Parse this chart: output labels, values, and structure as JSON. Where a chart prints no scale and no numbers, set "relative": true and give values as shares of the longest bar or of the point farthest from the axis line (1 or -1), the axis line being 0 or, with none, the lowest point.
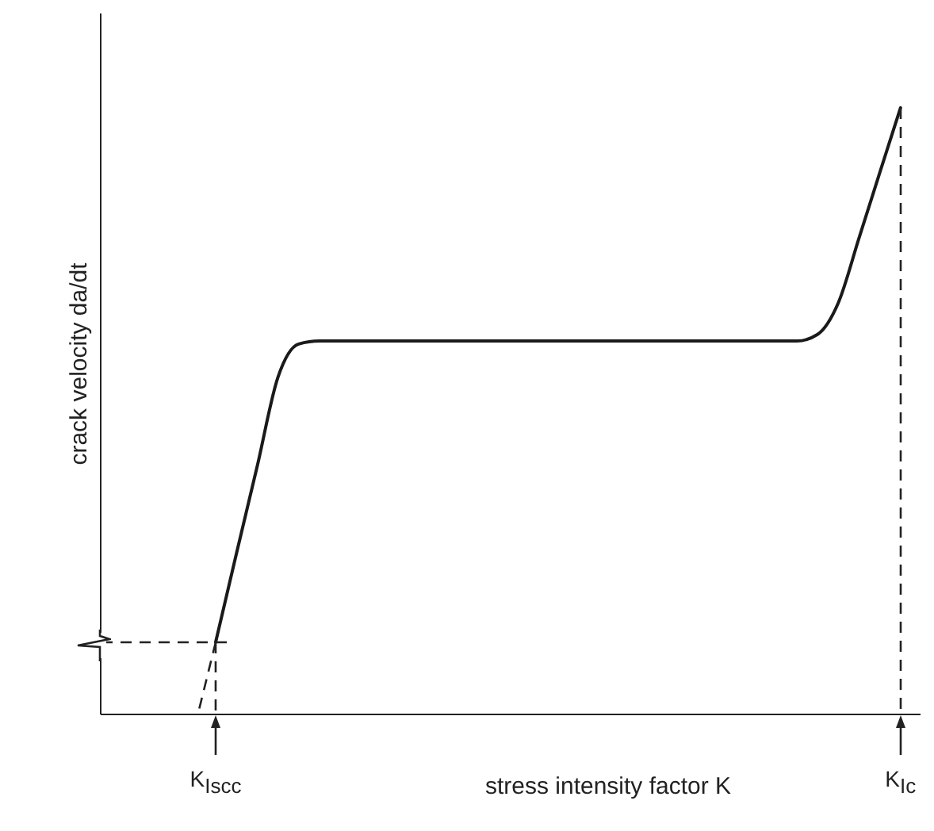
{
  "chart_data": {
    "type": "line",
    "relative": true,
    "xlabel": "stress intensity factor  K",
    "ylabel": "crack velocity  da/dt",
    "categories": [
      null,
      null,
      null,
      null,
      null,
      null,
      null,
      null,
      null,
      null,
      null,
      null,
      null,
      null,
      null,
      null,
      null,
      null,
      null,
      null,
      null,
      null,
      null,
      null,
      null,
      null,
      null,
      null,
      null,
      null,
      null,
      null,
      null,
      null
    ],
    "series": [
      {
        "color": "#1a1a1a",
        "values": [
          0.118,
          0.264,
          0.408,
          0.555,
          0.61,
          0.615,
          0.615,
          0.615,
          0.615,
          0.615,
          0.615,
          0.615,
          0.615,
          0.615,
          0.615,
          0.615,
          0.615,
          0.615,
          0.615,
          0.615,
          0.615,
          0.615,
          0.615,
          0.615,
          0.615,
          0.615,
          0.615,
          0.615,
          0.615,
          0.626,
          0.678,
          0.785,
          0.893,
          1
        ]
      }
    ],
    "line_style": "solid",
    "grid": false,
    "annotations": [
      "K$_{Iscc}$",
      "K$_{Ic}$"
    ]
  }
}
